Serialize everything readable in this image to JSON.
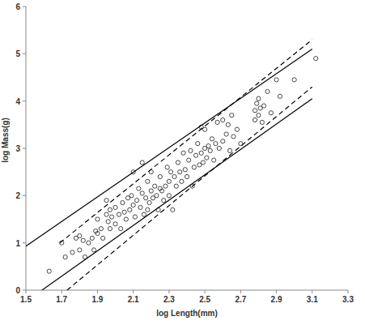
{
  "chart_data": {
    "type": "scatter",
    "x_label": "log Length(mm)",
    "y_label": "log Mass(g)",
    "xlim": [
      1.5,
      3.3
    ],
    "xticks": [
      1.5,
      1.7,
      1.9,
      2.1,
      2.3,
      2.5,
      2.7,
      2.9,
      3.1,
      3.3
    ],
    "ylim": [
      0,
      6
    ],
    "yticks": [
      0,
      1,
      2,
      3,
      4,
      5,
      6
    ],
    "grid": false,
    "series": [
      {
        "type": "scatter",
        "marker": "open-circle",
        "color": "#333333",
        "x": [
          1.63,
          1.7,
          1.72,
          1.76,
          1.78,
          1.8,
          1.8,
          1.82,
          1.83,
          1.85,
          1.87,
          1.88,
          1.89,
          1.9,
          1.9,
          1.92,
          1.93,
          1.95,
          1.95,
          1.96,
          1.97,
          1.97,
          1.98,
          2.0,
          2.0,
          2.02,
          2.03,
          2.04,
          2.05,
          2.06,
          2.07,
          2.08,
          2.09,
          2.1,
          2.1,
          2.11,
          2.12,
          2.13,
          2.14,
          2.15,
          2.15,
          2.16,
          2.17,
          2.18,
          2.18,
          2.19,
          2.2,
          2.2,
          2.21,
          2.22,
          2.23,
          2.24,
          2.25,
          2.25,
          2.26,
          2.27,
          2.28,
          2.29,
          2.3,
          2.3,
          2.31,
          2.32,
          2.33,
          2.34,
          2.35,
          2.36,
          2.37,
          2.38,
          2.39,
          2.4,
          2.41,
          2.42,
          2.43,
          2.44,
          2.45,
          2.46,
          2.47,
          2.48,
          2.48,
          2.49,
          2.5,
          2.5,
          2.51,
          2.52,
          2.53,
          2.54,
          2.55,
          2.56,
          2.57,
          2.58,
          2.6,
          2.6,
          2.62,
          2.63,
          2.64,
          2.65,
          2.66,
          2.68,
          2.7,
          2.78,
          2.78,
          2.79,
          2.8,
          2.8,
          2.81,
          2.82,
          2.83,
          2.85,
          2.87,
          2.9,
          2.92,
          3.0,
          3.12
        ],
        "values": [
          0.4,
          1.0,
          0.7,
          0.8,
          1.1,
          0.85,
          1.15,
          1.05,
          0.7,
          1.0,
          1.1,
          0.85,
          1.25,
          1.2,
          1.5,
          1.3,
          1.1,
          1.6,
          1.9,
          1.45,
          1.7,
          1.3,
          1.55,
          1.4,
          1.75,
          1.6,
          1.3,
          1.85,
          1.65,
          1.5,
          1.95,
          1.7,
          2.0,
          2.5,
          1.8,
          1.55,
          1.9,
          2.15,
          1.75,
          2.05,
          2.7,
          1.6,
          1.95,
          2.3,
          1.7,
          1.85,
          2.1,
          2.5,
          1.95,
          2.2,
          2.0,
          1.7,
          2.15,
          2.4,
          2.1,
          1.9,
          2.2,
          2.6,
          2.3,
          2.0,
          2.5,
          1.7,
          2.4,
          2.2,
          2.7,
          2.5,
          2.3,
          2.9,
          2.55,
          2.4,
          2.75,
          2.95,
          2.2,
          2.6,
          2.85,
          3.1,
          2.65,
          3.45,
          2.9,
          2.7,
          3.0,
          3.4,
          2.8,
          3.05,
          2.95,
          3.2,
          2.75,
          3.1,
          3.55,
          3.0,
          3.15,
          3.6,
          3.3,
          3.5,
          2.95,
          3.7,
          3.25,
          3.4,
          3.1,
          3.6,
          3.8,
          3.95,
          3.7,
          4.05,
          3.85,
          3.55,
          3.9,
          4.2,
          3.75,
          4.45,
          4.1,
          4.45,
          4.9
        ]
      },
      {
        "type": "line",
        "line_style": "solid",
        "color": "#000000",
        "x": [
          1.5,
          3.1
        ],
        "values": [
          0.93,
          5.1
        ]
      },
      {
        "type": "line",
        "line_style": "solid",
        "color": "#000000",
        "x": [
          1.59,
          3.1
        ],
        "values": [
          0,
          4.05
        ]
      },
      {
        "type": "line",
        "line_style": "dashed",
        "color": "#000000",
        "x": [
          1.69,
          3.1
        ],
        "values": [
          1.0,
          5.3
        ]
      },
      {
        "type": "line",
        "line_style": "dashed",
        "color": "#000000",
        "x": [
          1.73,
          3.1
        ],
        "values": [
          0,
          4.3
        ]
      }
    ]
  }
}
